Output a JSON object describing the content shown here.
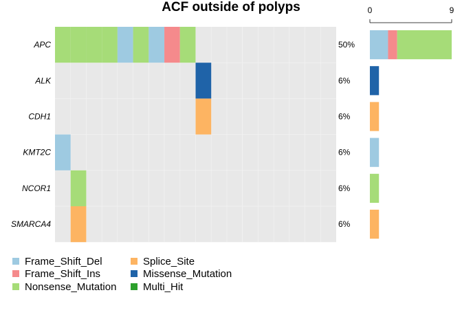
{
  "chart_data": {
    "type": "heatmap",
    "title": "ACF outside of polyps",
    "genes": [
      "APC",
      "ALK",
      "CDH1",
      "KMT2C",
      "NCOR1",
      "SMARCA4"
    ],
    "percentages": [
      "50%",
      "6%",
      "6%",
      "6%",
      "6%",
      "6%"
    ],
    "num_samples": 18,
    "cells": [
      {
        "gene": "APC",
        "sample": 1,
        "type": "Nonsense_Mutation"
      },
      {
        "gene": "APC",
        "sample": 2,
        "type": "Nonsense_Mutation"
      },
      {
        "gene": "APC",
        "sample": 3,
        "type": "Nonsense_Mutation"
      },
      {
        "gene": "APC",
        "sample": 4,
        "type": "Nonsense_Mutation"
      },
      {
        "gene": "APC",
        "sample": 5,
        "type": "Frame_Shift_Del"
      },
      {
        "gene": "APC",
        "sample": 6,
        "type": "Nonsense_Mutation"
      },
      {
        "gene": "APC",
        "sample": 7,
        "type": "Frame_Shift_Del"
      },
      {
        "gene": "APC",
        "sample": 8,
        "type": "Frame_Shift_Ins"
      },
      {
        "gene": "APC",
        "sample": 9,
        "type": "Nonsense_Mutation"
      },
      {
        "gene": "ALK",
        "sample": 10,
        "type": "Missense_Mutation"
      },
      {
        "gene": "CDH1",
        "sample": 10,
        "type": "Splice_Site"
      },
      {
        "gene": "KMT2C",
        "sample": 1,
        "type": "Frame_Shift_Del"
      },
      {
        "gene": "NCOR1",
        "sample": 2,
        "type": "Nonsense_Mutation"
      },
      {
        "gene": "SMARCA4",
        "sample": 2,
        "type": "Splice_Site"
      }
    ],
    "side_bar": {
      "axis_min": 0,
      "axis_max": 9,
      "tick_labels": [
        "0",
        "9"
      ],
      "stacks": [
        {
          "gene": "APC",
          "segments": [
            {
              "type": "Frame_Shift_Del",
              "value": 2
            },
            {
              "type": "Frame_Shift_Ins",
              "value": 1
            },
            {
              "type": "Nonsense_Mutation",
              "value": 6
            }
          ]
        },
        {
          "gene": "ALK",
          "segments": [
            {
              "type": "Missense_Mutation",
              "value": 1
            }
          ]
        },
        {
          "gene": "CDH1",
          "segments": [
            {
              "type": "Splice_Site",
              "value": 1
            }
          ]
        },
        {
          "gene": "KMT2C",
          "segments": [
            {
              "type": "Frame_Shift_Del",
              "value": 1
            }
          ]
        },
        {
          "gene": "NCOR1",
          "segments": [
            {
              "type": "Nonsense_Mutation",
              "value": 1
            }
          ]
        },
        {
          "gene": "SMARCA4",
          "segments": [
            {
              "type": "Splice_Site",
              "value": 1
            }
          ]
        }
      ]
    },
    "legend": {
      "placement": "bottom-left",
      "columns": [
        [
          "Frame_Shift_Del",
          "Frame_Shift_Ins",
          "Nonsense_Mutation"
        ],
        [
          "Splice_Site",
          "Missense_Mutation",
          "Multi_Hit"
        ]
      ]
    },
    "colors": {
      "Frame_Shift_Del": "#9ecae1",
      "Frame_Shift_Ins": "#f58a8c",
      "Nonsense_Mutation": "#a6dc78",
      "Splice_Site": "#fdb462",
      "Missense_Mutation": "#1f63a8",
      "Multi_Hit": "#2ca02c",
      "background": "#e8e8e8"
    }
  }
}
